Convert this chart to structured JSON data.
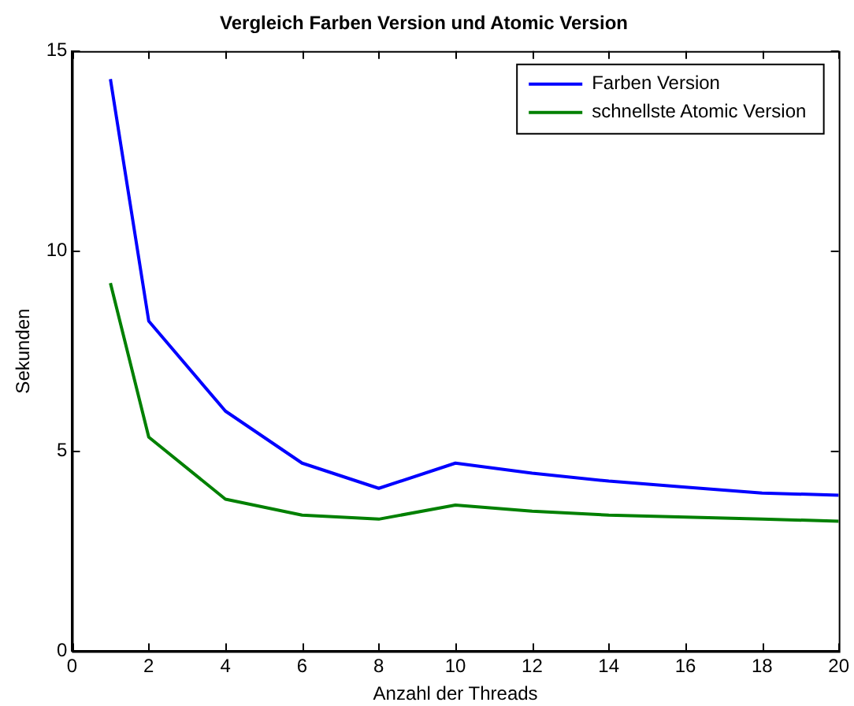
{
  "chart_data": {
    "type": "line",
    "title": "Vergleich Farben Version und Atomic Version",
    "xlabel": "Anzahl der Threads",
    "ylabel": "Sekunden",
    "x": [
      1,
      2,
      4,
      6,
      8,
      10,
      12,
      14,
      16,
      18,
      20
    ],
    "series": [
      {
        "name": "Farben Version",
        "color": "#0000ff",
        "values": [
          14.3,
          8.25,
          6.0,
          4.7,
          4.07,
          4.7,
          4.45,
          4.25,
          4.1,
          3.95,
          3.9
        ]
      },
      {
        "name": "schnellste Atomic Version",
        "color": "#008000",
        "values": [
          9.2,
          5.35,
          3.8,
          3.4,
          3.3,
          3.65,
          3.5,
          3.4,
          3.35,
          3.3,
          3.25
        ]
      }
    ],
    "xlim": [
      0,
      20
    ],
    "xticks": [
      0,
      2,
      4,
      6,
      8,
      10,
      12,
      14,
      16,
      18,
      20
    ],
    "ylim": [
      0,
      15
    ],
    "yticks": [
      0,
      5,
      10,
      15
    ],
    "grid": false,
    "legend": "top right",
    "marker": "none",
    "line_style": "solid"
  }
}
